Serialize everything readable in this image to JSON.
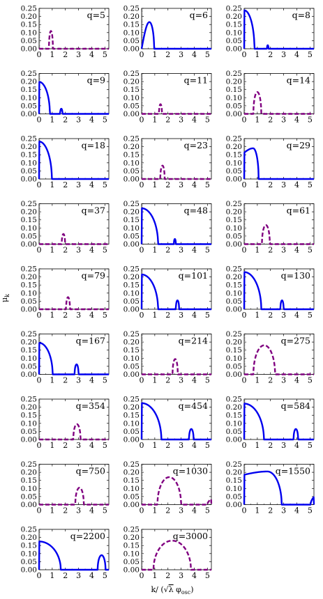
{
  "figure": {
    "ylabel": "μ",
    "ylabel_sub": "k",
    "xlabel_pre": "k/ (",
    "xlabel_sqrt": "√",
    "xlabel_lambda": "λ",
    "xlabel_phi": " φ",
    "xlabel_sub": "osc",
    "xlabel_post": ")"
  },
  "colors": {
    "solid": "#0000ee",
    "dashed": "#800080",
    "axis": "#000000"
  },
  "chart_data": [
    {
      "type": "line",
      "label": "q=5",
      "xlim": [
        0,
        5.3
      ],
      "ylim": [
        0,
        0.25
      ],
      "xticks": [
        0,
        1,
        2,
        3,
        4,
        5
      ],
      "yticks": [
        0.0,
        0.05,
        0.1,
        0.15,
        0.2,
        0.25
      ],
      "style": "dashed",
      "lobes": [
        {
          "x0": 0.75,
          "x1": 1.05,
          "peak": 0.11,
          "shape": "sym"
        }
      ]
    },
    {
      "type": "line",
      "label": "q=6",
      "xlim": [
        0,
        5.3
      ],
      "ylim": [
        0,
        0.25
      ],
      "xticks": [
        0,
        1,
        2,
        3,
        4,
        5
      ],
      "yticks": [
        0.0,
        0.05,
        0.1,
        0.15,
        0.2,
        0.25
      ],
      "style": "solid",
      "lobes": [
        {
          "x0": 0.0,
          "x1": 0.95,
          "peak": 0.165,
          "shape": "right",
          "start": 0.0
        }
      ]
    },
    {
      "type": "line",
      "label": "q=8",
      "xlim": [
        0,
        5.3
      ],
      "ylim": [
        0,
        0.25
      ],
      "xticks": [
        0,
        1,
        2,
        3,
        4,
        5
      ],
      "yticks": [
        0.0,
        0.05,
        0.1,
        0.15,
        0.2,
        0.25
      ],
      "style": "solid",
      "lobes": [
        {
          "x0": 0.0,
          "x1": 0.78,
          "peak": 0.238,
          "shape": "quarter"
        },
        {
          "x0": 1.73,
          "x1": 1.85,
          "peak": 0.022,
          "shape": "sym"
        }
      ]
    },
    {
      "type": "line",
      "label": "q=9",
      "xlim": [
        0,
        5.3
      ],
      "ylim": [
        0,
        0.25
      ],
      "xticks": [
        0,
        1,
        2,
        3,
        4,
        5
      ],
      "yticks": [
        0.0,
        0.05,
        0.1,
        0.15,
        0.2,
        0.25
      ],
      "style": "solid",
      "lobes": [
        {
          "x0": 0.0,
          "x1": 0.82,
          "peak": 0.198,
          "shape": "quarter"
        },
        {
          "x0": 1.6,
          "x1": 1.78,
          "peak": 0.032,
          "shape": "sym"
        }
      ]
    },
    {
      "type": "line",
      "label": "q=11",
      "xlim": [
        0,
        5.3
      ],
      "ylim": [
        0,
        0.25
      ],
      "xticks": [
        0,
        1,
        2,
        3,
        4,
        5
      ],
      "yticks": [
        0.0,
        0.05,
        0.1,
        0.15,
        0.2,
        0.25
      ],
      "style": "dashed",
      "lobes": [
        {
          "x0": 1.32,
          "x1": 1.55,
          "peak": 0.06,
          "shape": "sym"
        }
      ]
    },
    {
      "type": "line",
      "label": "q=14",
      "xlim": [
        0,
        5.3
      ],
      "ylim": [
        0,
        0.25
      ],
      "xticks": [
        0,
        1,
        2,
        3,
        4,
        5
      ],
      "yticks": [
        0.0,
        0.05,
        0.1,
        0.15,
        0.2,
        0.25
      ],
      "style": "dashed",
      "lobes": [
        {
          "x0": 0.7,
          "x1": 1.3,
          "peak": 0.135,
          "shape": "sym"
        }
      ]
    },
    {
      "type": "line",
      "label": "q=18",
      "xlim": [
        0,
        5.3
      ],
      "ylim": [
        0,
        0.25
      ],
      "xticks": [
        0,
        1,
        2,
        3,
        4,
        5
      ],
      "yticks": [
        0.0,
        0.05,
        0.1,
        0.15,
        0.2,
        0.25
      ],
      "style": "solid",
      "lobes": [
        {
          "x0": 0.0,
          "x1": 0.97,
          "peak": 0.232,
          "shape": "quarter"
        }
      ]
    },
    {
      "type": "line",
      "label": "q=23",
      "xlim": [
        0,
        5.3
      ],
      "ylim": [
        0,
        0.25
      ],
      "xticks": [
        0,
        1,
        2,
        3,
        4,
        5
      ],
      "yticks": [
        0.0,
        0.05,
        0.1,
        0.15,
        0.2,
        0.25
      ],
      "style": "dashed",
      "lobes": [
        {
          "x0": 1.42,
          "x1": 1.75,
          "peak": 0.083,
          "shape": "sym"
        }
      ]
    },
    {
      "type": "line",
      "label": "q=29",
      "xlim": [
        0,
        5.3
      ],
      "ylim": [
        0,
        0.25
      ],
      "xticks": [
        0,
        1,
        2,
        3,
        4,
        5
      ],
      "yticks": [
        0.0,
        0.05,
        0.1,
        0.15,
        0.2,
        0.25
      ],
      "style": "solid",
      "lobes": [
        {
          "x0": 0.0,
          "x1": 1.1,
          "peak": 0.19,
          "shape": "right",
          "start": 0.163
        }
      ]
    },
    {
      "type": "line",
      "label": "q=37",
      "xlim": [
        0,
        5.3
      ],
      "ylim": [
        0,
        0.25
      ],
      "xticks": [
        0,
        1,
        2,
        3,
        4,
        5
      ],
      "yticks": [
        0.0,
        0.05,
        0.1,
        0.15,
        0.2,
        0.25
      ],
      "style": "dashed",
      "lobes": [
        {
          "x0": 1.72,
          "x1": 1.98,
          "peak": 0.063,
          "shape": "sym"
        }
      ]
    },
    {
      "type": "line",
      "label": "q=48",
      "xlim": [
        0,
        5.3
      ],
      "ylim": [
        0,
        0.25
      ],
      "xticks": [
        0,
        1,
        2,
        3,
        4,
        5
      ],
      "yticks": [
        0.0,
        0.05,
        0.1,
        0.15,
        0.2,
        0.25
      ],
      "style": "solid",
      "lobes": [
        {
          "x0": 0.0,
          "x1": 1.25,
          "peak": 0.222,
          "shape": "quarter"
        },
        {
          "x0": 2.45,
          "x1": 2.6,
          "peak": 0.032,
          "shape": "sym"
        }
      ]
    },
    {
      "type": "line",
      "label": "q=61",
      "xlim": [
        0,
        5.3
      ],
      "ylim": [
        0,
        0.25
      ],
      "xticks": [
        0,
        1,
        2,
        3,
        4,
        5
      ],
      "yticks": [
        0.0,
        0.05,
        0.1,
        0.15,
        0.2,
        0.25
      ],
      "style": "dashed",
      "lobes": [
        {
          "x0": 1.35,
          "x1": 1.95,
          "peak": 0.118,
          "shape": "sym"
        }
      ]
    },
    {
      "type": "line",
      "label": "q=79",
      "xlim": [
        0,
        5.3
      ],
      "ylim": [
        0,
        0.25
      ],
      "xticks": [
        0,
        1,
        2,
        3,
        4,
        5
      ],
      "yticks": [
        0.0,
        0.05,
        0.1,
        0.15,
        0.2,
        0.25
      ],
      "style": "dashed",
      "lobes": [
        {
          "x0": 2.05,
          "x1": 2.35,
          "peak": 0.075,
          "shape": "sym"
        }
      ]
    },
    {
      "type": "line",
      "label": "q=101",
      "xlim": [
        0,
        5.3
      ],
      "ylim": [
        0,
        0.25
      ],
      "xticks": [
        0,
        1,
        2,
        3,
        4,
        5
      ],
      "yticks": [
        0.0,
        0.05,
        0.1,
        0.15,
        0.2,
        0.25
      ],
      "style": "solid",
      "lobes": [
        {
          "x0": 0.0,
          "x1": 1.25,
          "peak": 0.215,
          "shape": "quarter"
        },
        {
          "x0": 2.6,
          "x1": 2.85,
          "peak": 0.055,
          "shape": "sym"
        }
      ]
    },
    {
      "type": "line",
      "label": "q=130",
      "xlim": [
        0,
        5.3
      ],
      "ylim": [
        0,
        0.25
      ],
      "xticks": [
        0,
        1,
        2,
        3,
        4,
        5
      ],
      "yticks": [
        0.0,
        0.05,
        0.1,
        0.15,
        0.2,
        0.25
      ],
      "style": "solid",
      "lobes": [
        {
          "x0": 0.0,
          "x1": 1.3,
          "peak": 0.23,
          "shape": "quarter"
        },
        {
          "x0": 2.75,
          "x1": 3.0,
          "peak": 0.055,
          "shape": "sym"
        }
      ]
    },
    {
      "type": "line",
      "label": "q=167",
      "xlim": [
        0,
        5.3
      ],
      "ylim": [
        0,
        0.25
      ],
      "xticks": [
        0,
        1,
        2,
        3,
        4,
        5
      ],
      "yticks": [
        0.0,
        0.05,
        0.1,
        0.15,
        0.2,
        0.25
      ],
      "style": "solid",
      "lobes": [
        {
          "x0": 0.0,
          "x1": 1.03,
          "peak": 0.195,
          "shape": "quarter"
        },
        {
          "x0": 2.7,
          "x1": 3.0,
          "peak": 0.062,
          "shape": "sym"
        }
      ]
    },
    {
      "type": "line",
      "label": "q=214",
      "xlim": [
        0,
        5.3
      ],
      "ylim": [
        0,
        0.25
      ],
      "xticks": [
        0,
        1,
        2,
        3,
        4,
        5
      ],
      "yticks": [
        0.0,
        0.05,
        0.1,
        0.15,
        0.2,
        0.25
      ],
      "style": "dashed",
      "lobes": [
        {
          "x0": 2.35,
          "x1": 2.75,
          "peak": 0.095,
          "shape": "sym"
        }
      ]
    },
    {
      "type": "line",
      "label": "q=275",
      "xlim": [
        0,
        5.3
      ],
      "ylim": [
        0,
        0.25
      ],
      "xticks": [
        0,
        1,
        2,
        3,
        4,
        5
      ],
      "yticks": [
        0.0,
        0.05,
        0.1,
        0.15,
        0.2,
        0.25
      ],
      "style": "dashed",
      "lobes": [
        {
          "x0": 0.7,
          "x1": 2.35,
          "peak": 0.18,
          "shape": "sym"
        }
      ]
    },
    {
      "type": "line",
      "label": "q=354",
      "xlim": [
        0,
        5.3
      ],
      "ylim": [
        0,
        0.25
      ],
      "xticks": [
        0,
        1,
        2,
        3,
        4,
        5
      ],
      "yticks": [
        0.0,
        0.05,
        0.1,
        0.15,
        0.2,
        0.25
      ],
      "style": "dashed",
      "lobes": [
        {
          "x0": 2.6,
          "x1": 3.15,
          "peak": 0.095,
          "shape": "sym"
        }
      ]
    },
    {
      "type": "line",
      "label": "q=454",
      "xlim": [
        0,
        5.3
      ],
      "ylim": [
        0,
        0.25
      ],
      "xticks": [
        0,
        1,
        2,
        3,
        4,
        5
      ],
      "yticks": [
        0.0,
        0.05,
        0.1,
        0.15,
        0.2,
        0.25
      ],
      "style": "solid",
      "lobes": [
        {
          "x0": 0.0,
          "x1": 1.5,
          "peak": 0.225,
          "shape": "quarter"
        },
        {
          "x0": 3.6,
          "x1": 3.95,
          "peak": 0.065,
          "shape": "sym"
        }
      ]
    },
    {
      "type": "line",
      "label": "q=584",
      "xlim": [
        0,
        5.3
      ],
      "ylim": [
        0,
        0.25
      ],
      "xticks": [
        0,
        1,
        2,
        3,
        4,
        5
      ],
      "yticks": [
        0.0,
        0.05,
        0.1,
        0.15,
        0.2,
        0.25
      ],
      "style": "solid",
      "lobes": [
        {
          "x0": 0.0,
          "x1": 1.5,
          "peak": 0.222,
          "shape": "quarter"
        },
        {
          "x0": 3.75,
          "x1": 4.1,
          "peak": 0.065,
          "shape": "sym"
        }
      ]
    },
    {
      "type": "line",
      "label": "q=750",
      "xlim": [
        0,
        5.3
      ],
      "ylim": [
        0,
        0.25
      ],
      "xticks": [
        0,
        1,
        2,
        3,
        4,
        5
      ],
      "yticks": [
        0.0,
        0.05,
        0.1,
        0.15,
        0.2,
        0.25
      ],
      "style": "dashed",
      "lobes": [
        {
          "x0": 2.75,
          "x1": 3.4,
          "peak": 0.105,
          "shape": "sym"
        }
      ]
    },
    {
      "type": "line",
      "label": "q=1030",
      "xlim": [
        0,
        5.3
      ],
      "ylim": [
        0,
        0.25
      ],
      "xticks": [
        0,
        1,
        2,
        3,
        4,
        5
      ],
      "yticks": [
        0.0,
        0.05,
        0.1,
        0.15,
        0.2,
        0.25
      ],
      "style": "dashed",
      "lobes": [
        {
          "x0": 1.2,
          "x1": 3.0,
          "peak": 0.17,
          "shape": "sym"
        },
        {
          "x0": 5.0,
          "x1": 5.3,
          "peak": 0.035,
          "shape": "rise"
        }
      ]
    },
    {
      "type": "line",
      "label": "q=1550",
      "xlim": [
        0,
        5.3
      ],
      "ylim": [
        0,
        0.25
      ],
      "xticks": [
        0,
        1,
        2,
        3,
        4,
        5
      ],
      "yticks": [
        0.0,
        0.05,
        0.1,
        0.15,
        0.2,
        0.25
      ],
      "style": "solid",
      "lobes": [
        {
          "x0": 0.0,
          "x1": 2.85,
          "peak": 0.205,
          "shape": "right",
          "start": 0.185
        },
        {
          "x0": 5.05,
          "x1": 5.3,
          "peak": 0.048,
          "shape": "rise"
        }
      ]
    },
    {
      "type": "line",
      "label": "q=2200",
      "xlim": [
        0,
        5.3
      ],
      "ylim": [
        0,
        0.25
      ],
      "xticks": [
        0,
        1,
        2,
        3,
        4,
        5
      ],
      "yticks": [
        0.0,
        0.05,
        0.1,
        0.15,
        0.2,
        0.25
      ],
      "style": "solid",
      "lobes": [
        {
          "x0": 0.0,
          "x1": 1.65,
          "peak": 0.175,
          "shape": "quarter"
        },
        {
          "x0": 4.45,
          "x1": 5.05,
          "peak": 0.09,
          "shape": "sym"
        }
      ]
    },
    {
      "type": "line",
      "label": "q=3000",
      "xlim": [
        0,
        5.3
      ],
      "ylim": [
        0,
        0.25
      ],
      "xticks": [
        0,
        1,
        2,
        3,
        4,
        5
      ],
      "yticks": [
        0.0,
        0.05,
        0.1,
        0.15,
        0.2,
        0.25
      ],
      "style": "dashed",
      "lobes": [
        {
          "x0": 0.9,
          "x1": 3.75,
          "peak": 0.18,
          "shape": "sym"
        }
      ]
    }
  ]
}
